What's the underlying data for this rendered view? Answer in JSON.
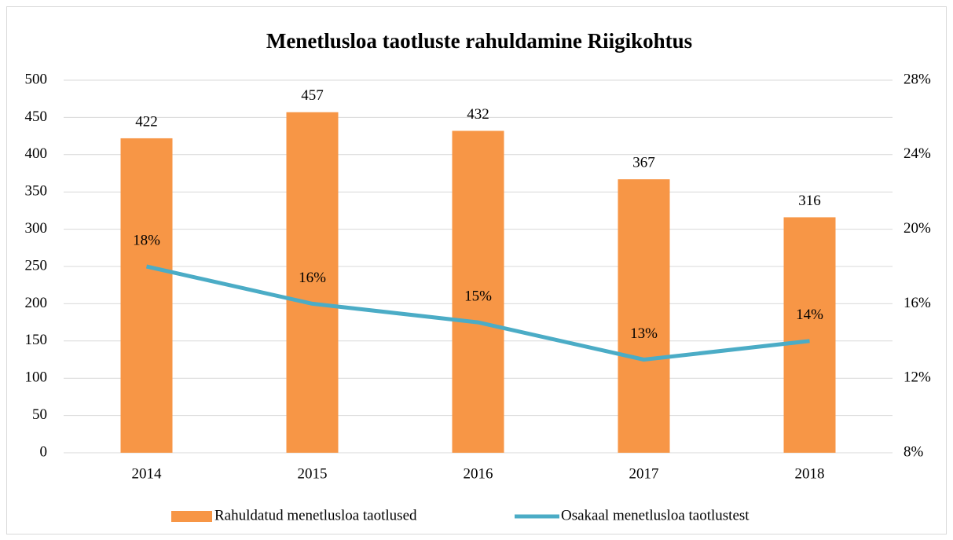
{
  "chart_data": {
    "type": "bar",
    "title": "Menetlusloa taotluste rahuldamine Riigikohtus",
    "categories": [
      "2014",
      "2015",
      "2016",
      "2017",
      "2018"
    ],
    "series": [
      {
        "name": "Rahuldatud menetlusloa taotlused",
        "type": "bar",
        "color": "#f79646",
        "values": [
          422,
          457,
          432,
          367,
          316
        ]
      },
      {
        "name": "Osakaal menetlusloa taotlustest",
        "type": "line",
        "axis": "y2",
        "color": "#4bacc6",
        "values": [
          18,
          16,
          15,
          13,
          14
        ],
        "value_labels": [
          "18%",
          "16%",
          "15%",
          "13%",
          "14%"
        ]
      }
    ],
    "ylim": [
      0,
      500
    ],
    "yticks": [
      0,
      50,
      100,
      150,
      200,
      250,
      300,
      350,
      400,
      450,
      500
    ],
    "y2lim": [
      8,
      28
    ],
    "y2ticks": [
      {
        "value": 8,
        "label": "8%"
      },
      {
        "value": 12,
        "label": "12%"
      },
      {
        "value": 16,
        "label": "16%"
      },
      {
        "value": 20,
        "label": "20%"
      },
      {
        "value": 24,
        "label": "24%"
      },
      {
        "value": 28,
        "label": "28%"
      }
    ],
    "grid": true,
    "legend": "bottom"
  }
}
